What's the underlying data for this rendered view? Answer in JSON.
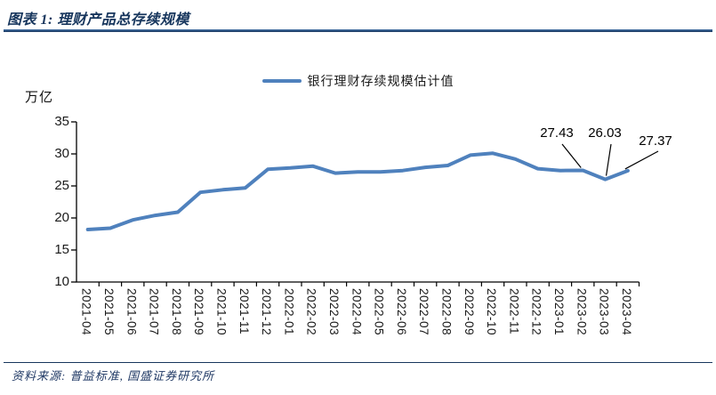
{
  "header": {
    "title": "图表 1: 理财产品总存续规模"
  },
  "footer": {
    "source": "资料来源: 普益标准, 国盛证券研究所"
  },
  "chart_data": {
    "type": "line",
    "title": "图表 1: 理财产品总存续规模",
    "unit_label": "万亿",
    "legend": [
      "银行理财存续规模估计值"
    ],
    "legend_position": "top-center",
    "grid": false,
    "line_color": "#4F81BD",
    "axis_color": "#000000",
    "categories": [
      "2021-04",
      "2021-05",
      "2021-06",
      "2021-07",
      "2021-08",
      "2021-09",
      "2021-10",
      "2021-11",
      "2021-12",
      "2022-01",
      "2022-02",
      "2022-03",
      "2022-04",
      "2022-05",
      "2022-06",
      "2022-07",
      "2022-08",
      "2022-09",
      "2022-10",
      "2022-11",
      "2022-12",
      "2023-01",
      "2023-02",
      "2023-03",
      "2023-04"
    ],
    "series": [
      {
        "name": "银行理财存续规模估计值",
        "values": [
          18.2,
          18.4,
          19.7,
          20.4,
          20.9,
          24.0,
          24.4,
          24.7,
          27.6,
          27.8,
          28.1,
          27.0,
          27.2,
          27.2,
          27.4,
          27.9,
          28.2,
          29.8,
          30.1,
          29.2,
          27.7,
          27.4,
          27.43,
          26.03,
          27.37
        ]
      }
    ],
    "ylim": [
      10,
      35
    ],
    "yticks": [
      35,
      30,
      25,
      20,
      15,
      10
    ],
    "annotations": [
      {
        "label": "27.43",
        "category": "2023-02",
        "value": 27.43
      },
      {
        "label": "26.03",
        "category": "2023-03",
        "value": 26.03
      },
      {
        "label": "27.37",
        "category": "2023-04",
        "value": 27.37
      }
    ]
  }
}
